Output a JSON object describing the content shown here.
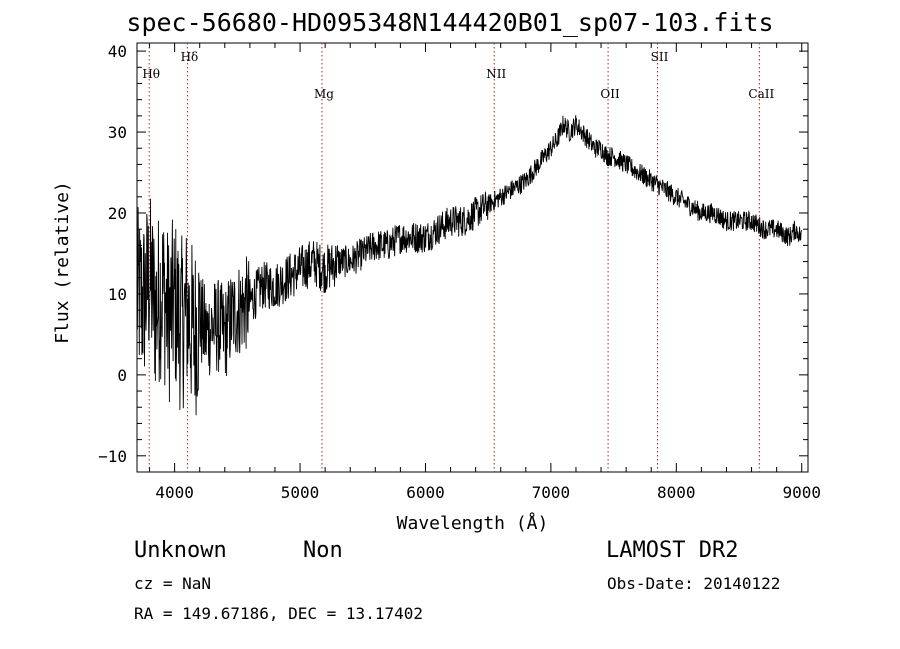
{
  "title": "spec-56680-HD095348N144420B01_sp07-103.fits",
  "chart_data": {
    "type": "line",
    "xlabel": "Wavelength (Å)",
    "ylabel": "Flux (relative)",
    "xlim": [
      3700,
      9050
    ],
    "ylim": [
      -12,
      41
    ],
    "xticks": [
      4000,
      5000,
      6000,
      7000,
      8000,
      9000
    ],
    "yticks": [
      -10,
      0,
      10,
      20,
      30,
      40
    ],
    "series": [
      {
        "x": [
          3700,
          3750,
          3800,
          3850,
          3900,
          3950,
          4000,
          4050,
          4100,
          4150,
          4200,
          4250,
          4300,
          4350,
          4400,
          4450,
          4500,
          4600,
          4700,
          4800,
          4900,
          5000,
          5100,
          5200,
          5300,
          5400,
          5500,
          5600,
          5700,
          5800,
          5900,
          6000,
          6100,
          6200,
          6300,
          6400,
          6500,
          6600,
          6700,
          6800,
          6900,
          7000,
          7050,
          7100,
          7150,
          7200,
          7250,
          7300,
          7350,
          7400,
          7450,
          7500,
          7600,
          7700,
          7800,
          7900,
          8000,
          8100,
          8200,
          8300,
          8400,
          8500,
          8600,
          8700,
          8800,
          8900,
          8950,
          9000
        ],
        "y": [
          10,
          9,
          12,
          8,
          11,
          7,
          9,
          6,
          8,
          5,
          7,
          5,
          6,
          6,
          5,
          7,
          8,
          9,
          11,
          11,
          12,
          13,
          14,
          13,
          14,
          14,
          15,
          16,
          16,
          17,
          17,
          17,
          18,
          19,
          19,
          20,
          21,
          22,
          23,
          24,
          26,
          28,
          29,
          31,
          30,
          31,
          30,
          29,
          28,
          28,
          27,
          27,
          26,
          25,
          24,
          23,
          22,
          21,
          20,
          20,
          19,
          19,
          19,
          18,
          18,
          17,
          18,
          17
        ]
      }
    ],
    "lines": [
      {
        "label": "Hθ",
        "x": 3797,
        "row": "top"
      },
      {
        "label": "Hδ",
        "x": 4102,
        "row": "upper"
      },
      {
        "label": "Mg",
        "x": 5175,
        "row": "lower"
      },
      {
        "label": "NII",
        "x": 6548,
        "row": "top"
      },
      {
        "label": "OII",
        "x": 7456,
        "row": "lower"
      },
      {
        "label": "SII",
        "x": 7850,
        "row": "upper"
      },
      {
        "label": "CaII",
        "x": 8662,
        "row": "lower"
      }
    ]
  },
  "info": {
    "object_class": "Unknown",
    "object_sub": "Non",
    "survey": "LAMOST DR2",
    "cz": "cz = NaN",
    "obs_date": "Obs-Date: 20140122",
    "coords": "RA = 149.67186, DEC =  13.17402"
  }
}
